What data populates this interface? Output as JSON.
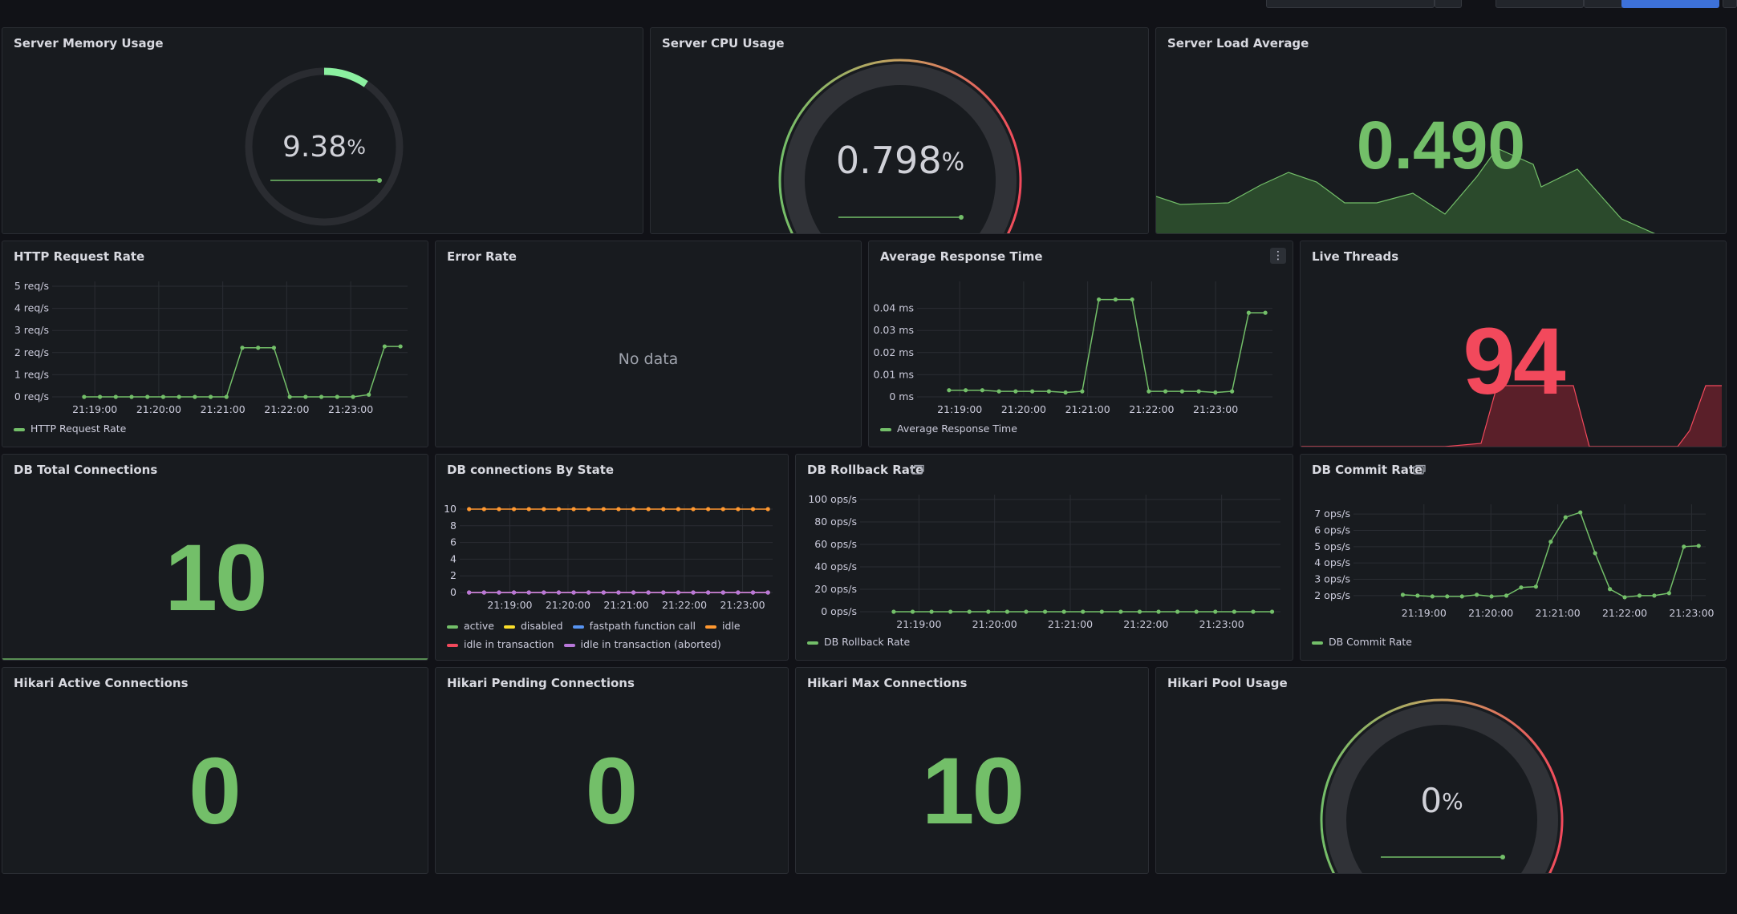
{
  "colors": {
    "green": "#73bf69",
    "green_fill": "#2b4a2c",
    "red": "#f2495c",
    "red_fill": "#5a1f29",
    "orange": "#ff9830",
    "purple": "#b877d9",
    "yellow": "#fade2a",
    "blue": "#5794f2",
    "bright_green": "#8bf0a0"
  },
  "icons": {
    "library": "library-panel-icon",
    "menu": "panel-menu-icon"
  },
  "panels": {
    "mem": {
      "title": "Server Memory Usage",
      "value": "9.38",
      "unit": "%",
      "fraction": 0.0938
    },
    "cpu": {
      "title": "Server CPU Usage",
      "value": "0.798",
      "unit": "%",
      "fraction": 0.00798
    },
    "load": {
      "title": "Server Load Average",
      "value": "0.490"
    },
    "http": {
      "title": "HTTP Request Rate"
    },
    "err": {
      "title": "Error Rate",
      "nodata": "No data"
    },
    "resp": {
      "title": "Average Response Time"
    },
    "threads": {
      "title": "Live Threads",
      "value": "94"
    },
    "dbtotal": {
      "title": "DB Total Connections",
      "value": "10"
    },
    "dbstate": {
      "title": "DB connections By State"
    },
    "rollback": {
      "title": "DB Rollback Rate"
    },
    "commit": {
      "title": "DB Commit Rate"
    },
    "hactive": {
      "title": "Hikari Active Connections",
      "value": "0"
    },
    "hpending": {
      "title": "Hikari Pending Connections",
      "value": "0"
    },
    "hmax": {
      "title": "Hikari Max Connections",
      "value": "10"
    },
    "hpool": {
      "title": "Hikari Pool Usage",
      "value": "0",
      "unit": "%",
      "fraction": 0
    }
  },
  "chart_data": [
    {
      "id": "http",
      "type": "line",
      "title": "HTTP Request Rate",
      "x_ticks": [
        "21:19:00",
        "21:20:00",
        "21:21:00",
        "21:22:00",
        "21:23:00"
      ],
      "y_ticks": [
        "0 req/s",
        "1 req/s",
        "2 req/s",
        "3 req/s",
        "4 req/s",
        "5 req/s"
      ],
      "ylim": [
        0,
        5
      ],
      "series": [
        {
          "name": "HTTP Request Rate",
          "color": "#73bf69",
          "values": [
            0,
            0,
            0,
            0,
            0,
            0,
            0,
            0,
            0,
            0,
            2.22,
            2.22,
            2.22,
            0,
            0,
            0,
            0,
            0,
            0.1,
            2.28,
            2.28
          ]
        }
      ]
    },
    {
      "id": "resp",
      "type": "line",
      "title": "Average Response Time",
      "x_ticks": [
        "21:19:00",
        "21:20:00",
        "21:21:00",
        "21:22:00",
        "21:23:00"
      ],
      "y_ticks": [
        "0 ms",
        "0.01 ms",
        "0.02 ms",
        "0.03 ms",
        "0.04 ms"
      ],
      "ylim": [
        0,
        0.05
      ],
      "series": [
        {
          "name": "Average Response Time",
          "color": "#73bf69",
          "values": [
            0.003,
            0.003,
            0.003,
            0.0025,
            0.0025,
            0.0025,
            0.0025,
            0.002,
            0.0025,
            0.044,
            0.044,
            0.044,
            0.0025,
            0.0025,
            0.0025,
            0.0025,
            0.002,
            0.0025,
            0.038,
            0.038
          ]
        }
      ]
    },
    {
      "id": "dbstate",
      "type": "line",
      "title": "DB connections By State",
      "x_ticks": [
        "21:19:00",
        "21:20:00",
        "21:21:00",
        "21:22:00",
        "21:23:00"
      ],
      "y_ticks": [
        "0",
        "2",
        "4",
        "6",
        "8",
        "10"
      ],
      "ylim": [
        0,
        10
      ],
      "series": [
        {
          "name": "active",
          "color": "#73bf69",
          "values": [
            0,
            0,
            0,
            0,
            0,
            0,
            0,
            0,
            0,
            0,
            0,
            0,
            0,
            0,
            0,
            0,
            0,
            0,
            0,
            0,
            0
          ]
        },
        {
          "name": "disabled",
          "color": "#fade2a",
          "values": [
            0,
            0,
            0,
            0,
            0,
            0,
            0,
            0,
            0,
            0,
            0,
            0,
            0,
            0,
            0,
            0,
            0,
            0,
            0,
            0,
            0
          ]
        },
        {
          "name": "fastpath function call",
          "color": "#5794f2",
          "values": [
            0,
            0,
            0,
            0,
            0,
            0,
            0,
            0,
            0,
            0,
            0,
            0,
            0,
            0,
            0,
            0,
            0,
            0,
            0,
            0,
            0
          ]
        },
        {
          "name": "idle",
          "color": "#ff9830",
          "values": [
            10,
            10,
            10,
            10,
            10,
            10,
            10,
            10,
            10,
            10,
            10,
            10,
            10,
            10,
            10,
            10,
            10,
            10,
            10,
            10,
            10
          ]
        },
        {
          "name": "idle in transaction",
          "color": "#f2495c",
          "values": [
            0,
            0,
            0,
            0,
            0,
            0,
            0,
            0,
            0,
            0,
            0,
            0,
            0,
            0,
            0,
            0,
            0,
            0,
            0,
            0,
            0
          ]
        },
        {
          "name": "idle in transaction (aborted)",
          "color": "#b877d9",
          "values": [
            0,
            0,
            0,
            0,
            0,
            0,
            0,
            0,
            0,
            0,
            0,
            0,
            0,
            0,
            0,
            0,
            0,
            0,
            0,
            0,
            0
          ]
        }
      ]
    },
    {
      "id": "rollback",
      "type": "line",
      "title": "DB Rollback Rate",
      "x_ticks": [
        "21:19:00",
        "21:20:00",
        "21:21:00",
        "21:22:00",
        "21:23:00"
      ],
      "y_ticks": [
        "0 ops/s",
        "20 ops/s",
        "40 ops/s",
        "60 ops/s",
        "80 ops/s",
        "100 ops/s"
      ],
      "ylim": [
        0,
        100
      ],
      "series": [
        {
          "name": "DB Rollback Rate",
          "color": "#73bf69",
          "values": [
            0,
            0,
            0,
            0,
            0,
            0,
            0,
            0,
            0,
            0,
            0,
            0,
            0,
            0,
            0,
            0,
            0,
            0,
            0,
            0,
            0
          ]
        }
      ]
    },
    {
      "id": "commit",
      "type": "line",
      "title": "DB Commit Rate",
      "x_ticks": [
        "21:19:00",
        "21:20:00",
        "21:21:00",
        "21:22:00",
        "21:23:00"
      ],
      "y_ticks": [
        "2 ops/s",
        "3 ops/s",
        "4 ops/s",
        "5 ops/s",
        "6 ops/s",
        "7 ops/s"
      ],
      "ylim": [
        1.7,
        7.3
      ],
      "series": [
        {
          "name": "DB Commit Rate",
          "color": "#73bf69",
          "values": [
            2.05,
            2.0,
            1.95,
            1.95,
            1.95,
            2.05,
            1.95,
            2.0,
            2.5,
            2.55,
            5.3,
            6.8,
            7.1,
            4.6,
            2.4,
            1.9,
            2.0,
            2.0,
            2.15,
            5.0,
            5.05
          ]
        }
      ]
    }
  ]
}
